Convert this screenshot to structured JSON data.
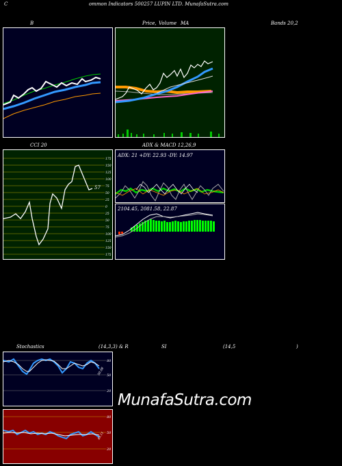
{
  "header": {
    "left_letter": "C",
    "title": "ommon  Indicators 500257 LUPIN  LTD. MunafaSutra.com"
  },
  "panel_titles": {
    "bollinger": "B",
    "price_volume": "Price,",
    "volume": "Volume",
    "ma": "MA",
    "bands": "Bands 20,2",
    "cci": "CCI 20",
    "adx_macd_1": "ADX  & MACD 12,26,9",
    "stoch_1": "Stochastics",
    "stoch_2": "(14,3,3) & R",
    "stoch_3": "SI",
    "stoch_4": "(14,5",
    "stoch_5": ")"
  },
  "cci": {
    "current_value": "57",
    "levels": [
      "175",
      "150",
      "125",
      "100",
      "75",
      "50",
      "25",
      "0",
      "25",
      "50",
      "75",
      "100",
      "125",
      "150",
      "175"
    ]
  },
  "adx": {
    "text": "ADX: 21 +DY: 22.93 -DY: 14.97"
  },
  "macd": {
    "text": "2104.45,  2081.58,  22.87"
  },
  "stochastics": {
    "levels": [
      "80",
      "50",
      "20"
    ],
    "value_label": "50.08"
  },
  "rsi": {
    "levels": [
      "80",
      "50",
      "20"
    ],
    "value_label": "49.11"
  },
  "watermark": "MunafaSutra.com",
  "colors": {
    "bollinger_bg": "#000022",
    "price_bg": "#002200",
    "cci_bg": "#002200",
    "adx_bg": "#000022",
    "stoch_bg": "#000022",
    "rsi_bg": "#880000",
    "price_line": "#ffffff",
    "ma_blue": "#3399ff",
    "ma_orange": "#ff9900",
    "ma_pink": "#ff66cc",
    "volume_green": "#00cc00"
  }
}
